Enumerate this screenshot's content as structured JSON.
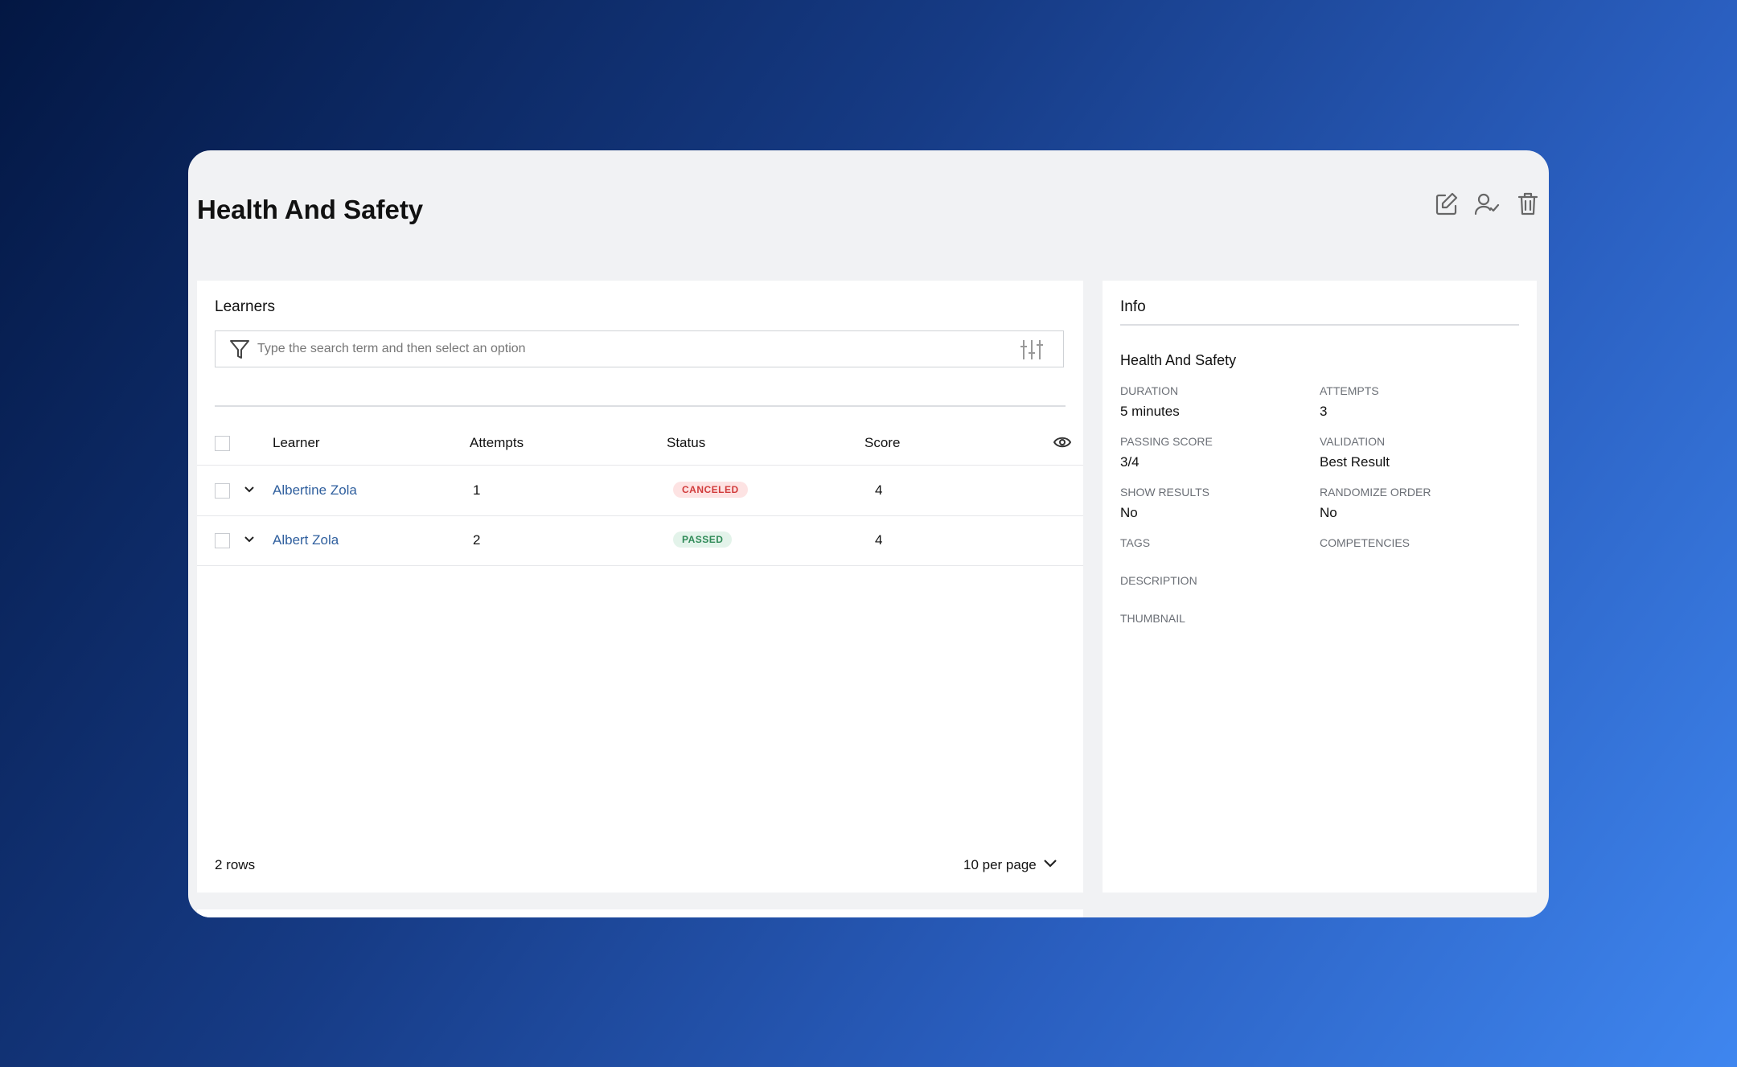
{
  "header": {
    "title": "Health And Safety"
  },
  "learners": {
    "title": "Learners",
    "search_placeholder": "Type the search term and then select an option"
  },
  "table": {
    "columns": [
      "Learner",
      "Attempts",
      "Status",
      "Score"
    ],
    "rows": [
      [
        "Albertine Zola",
        1,
        "CANCELED",
        4
      ],
      [
        "Albert Zola",
        2,
        "PASSED",
        4
      ]
    ]
  },
  "footer": {
    "rows_label": "2 rows",
    "per_page": "10 per page"
  },
  "info": {
    "title": "Info",
    "name": "Health And Safety",
    "fields": [
      [
        {
          "label": "DURATION",
          "value": "5 minutes"
        },
        {
          "label": "ATTEMPTS",
          "value": "3"
        }
      ],
      [
        {
          "label": "PASSING SCORE",
          "value": "3/4"
        },
        {
          "label": "VALIDATION",
          "value": "Best Result"
        }
      ],
      [
        {
          "label": "SHOW RESULTS",
          "value": "No"
        },
        {
          "label": "RANDOMIZE ORDER",
          "value": "No"
        }
      ],
      [
        {
          "label": "TAGS"
        },
        {
          "label": "COMPETENCIES"
        }
      ],
      [
        {
          "label": "DESCRIPTION"
        }
      ],
      [
        {
          "label": "THUMBNAIL"
        }
      ]
    ]
  }
}
